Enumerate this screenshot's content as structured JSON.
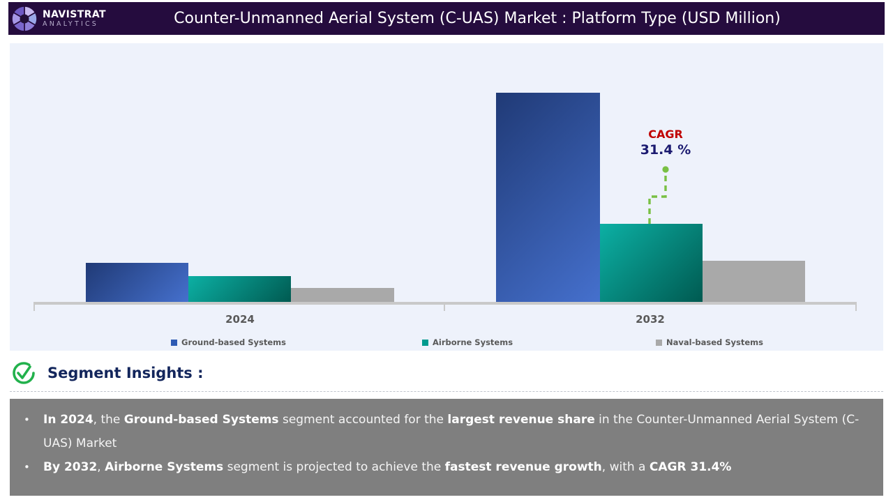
{
  "header": {
    "brand_name": "NAVISTRAT",
    "brand_sub": "ANALYTICS",
    "title": "Counter-Unmanned Aerial System (C-UAS) Market : Platform Type (USD Million)"
  },
  "chart_data": {
    "type": "bar",
    "title": "Counter-Unmanned Aerial System (C-UAS) Market : Platform Type (USD Million)",
    "categories": [
      "2024",
      "2032"
    ],
    "series": [
      {
        "name": "Ground-based Systems",
        "values": [
          18.7,
          100
        ],
        "gradient": [
          "#203a76",
          "#4570cd"
        ],
        "legend_color": "#2e5bb4"
      },
      {
        "name": "Airborne Systems",
        "values": [
          12.3,
          37.3
        ],
        "gradient": [
          "#0cb0a4",
          "#005a51"
        ],
        "legend_color": "#009a8e"
      },
      {
        "name": "Naval-based Systems",
        "values": [
          6.7,
          19.7
        ],
        "color": "#a9a9a9",
        "legend_color": "#a9a9a9"
      }
    ],
    "ylabel": "",
    "xlabel": "",
    "ylim": [
      0,
      100
    ],
    "units": "relative height index (no value axis shown in figure)",
    "grid": false,
    "legend_position": "bottom",
    "annotation": {
      "label": "CAGR",
      "value": "31.4 %",
      "target_series": "Airborne Systems",
      "target_category": "2032",
      "connector_color": "#79c044"
    }
  },
  "insights": {
    "heading": "Segment Insights :",
    "bullet_char": "•",
    "bullets": [
      {
        "segments": [
          {
            "text": "In 2024",
            "bold": true
          },
          {
            "text": ", the ",
            "bold": false
          },
          {
            "text": "Ground-based Systems",
            "bold": true
          },
          {
            "text": " segment accounted for the ",
            "bold": false
          },
          {
            "text": "largest revenue share",
            "bold": true
          },
          {
            "text": " in the Counter-Unmanned Aerial System (C-UAS) Market",
            "bold": false
          }
        ]
      },
      {
        "segments": [
          {
            "text": "By 2032",
            "bold": true
          },
          {
            "text": ", ",
            "bold": false
          },
          {
            "text": "Airborne Systems",
            "bold": true
          },
          {
            "text": " segment is projected to achieve the ",
            "bold": false
          },
          {
            "text": "fastest revenue growth",
            "bold": true
          },
          {
            "text": ", with a ",
            "bold": false
          },
          {
            "text": "CAGR 31.4%",
            "bold": true
          }
        ]
      }
    ]
  },
  "colors": {
    "header_bg": "#250c3e",
    "chart_bg": "#eef2fb",
    "axis": "#c9c9c9",
    "category_text": "#595959",
    "cagr_label": "#c00000",
    "cagr_value": "#1b1a70",
    "connector_green": "#79c044",
    "heading_navy": "#13265c",
    "check_icon_green": "#22b14c",
    "insights_box_bg": "#7f7f7f",
    "insights_text": "#f5f5f5"
  }
}
